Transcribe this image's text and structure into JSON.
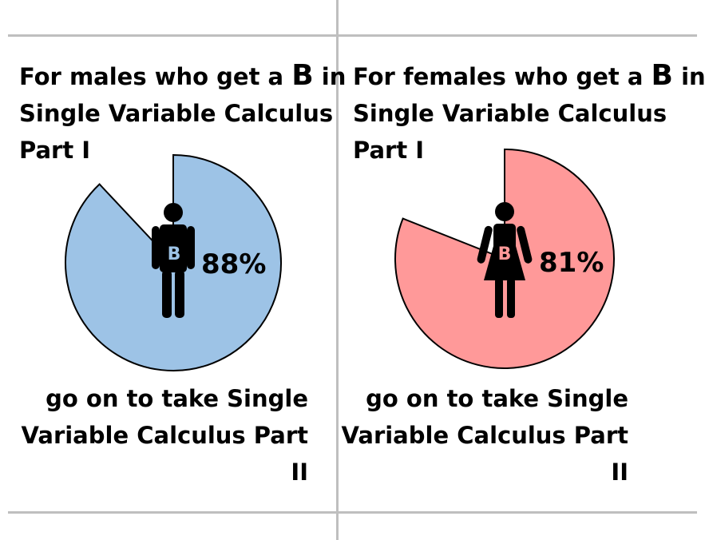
{
  "colors": {
    "male_fill": "#9dc3e6",
    "female_fill": "#ff9999",
    "stroke": "#000000",
    "gridline": "#bfbfbf"
  },
  "chart_data": [
    {
      "type": "pie",
      "title_lines": [
        "For males who get a",
        "Single Variable Calculus",
        "Part I"
      ],
      "title_prefix": "For males who get a",
      "grade": "B",
      "title_suffix": "in",
      "title_line2": "Single Variable Calculus",
      "title_line3": "Part I",
      "value": 88,
      "value_label": "88%",
      "badge": "B",
      "icon": "male-figure-icon",
      "fill": "#9dc3e6",
      "caption_lines": [
        "go on to take Single",
        "Variable Calculus Part",
        "II"
      ]
    },
    {
      "type": "pie",
      "title_prefix": "For females who get a",
      "grade": "B",
      "title_suffix": "in",
      "title_line2": "Single Variable Calculus",
      "title_line3": "Part I",
      "value": 81,
      "value_label": "81%",
      "badge": "B",
      "icon": "female-figure-icon",
      "fill": "#ff9999",
      "caption_lines": [
        "go on to take Single",
        "Variable Calculus Part",
        "II"
      ]
    }
  ]
}
